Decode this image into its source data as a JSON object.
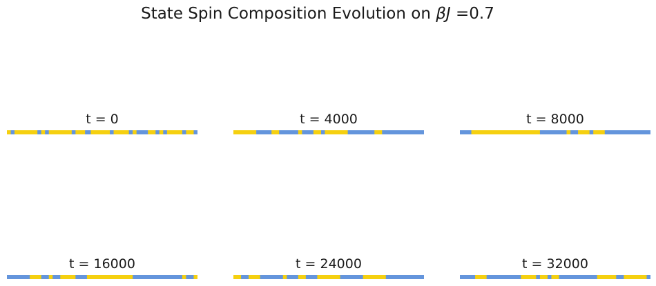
{
  "title_prefix": "State Spin Composition Evolution on ",
  "title_beta": "β",
  "title_j": "J",
  "title_suffix": " =0.7",
  "colors": {
    "up": "#f5d010",
    "down": "#6495dc"
  },
  "chart_data": {
    "type": "heatmap",
    "title": "State Spin Composition Evolution on βJ =0.7",
    "beta_j": 0.7,
    "n_sites": 100,
    "grid": false,
    "series_legend": "none",
    "panels": [
      {
        "label": "t = 0",
        "t": 0,
        "runs": [
          [
            0,
            2,
            "up"
          ],
          [
            2,
            4,
            "down"
          ],
          [
            4,
            16,
            "up"
          ],
          [
            16,
            18,
            "down"
          ],
          [
            18,
            20,
            "up"
          ],
          [
            20,
            22,
            "down"
          ],
          [
            22,
            34,
            "up"
          ],
          [
            34,
            36,
            "down"
          ],
          [
            36,
            41,
            "up"
          ],
          [
            41,
            44,
            "down"
          ],
          [
            44,
            54,
            "up"
          ],
          [
            54,
            56,
            "down"
          ],
          [
            56,
            64,
            "up"
          ],
          [
            64,
            66,
            "down"
          ],
          [
            66,
            68,
            "up"
          ],
          [
            68,
            74,
            "down"
          ],
          [
            74,
            78,
            "up"
          ],
          [
            78,
            80,
            "down"
          ],
          [
            80,
            82,
            "up"
          ],
          [
            82,
            84,
            "down"
          ],
          [
            84,
            92,
            "up"
          ],
          [
            92,
            94,
            "down"
          ],
          [
            94,
            98,
            "up"
          ],
          [
            98,
            100,
            "down"
          ]
        ]
      },
      {
        "label": "t = 4000",
        "t": 4000,
        "runs": [
          [
            0,
            12,
            "up"
          ],
          [
            12,
            20,
            "down"
          ],
          [
            20,
            24,
            "up"
          ],
          [
            24,
            34,
            "down"
          ],
          [
            34,
            36,
            "up"
          ],
          [
            36,
            42,
            "down"
          ],
          [
            42,
            46,
            "up"
          ],
          [
            46,
            48,
            "down"
          ],
          [
            48,
            60,
            "up"
          ],
          [
            60,
            74,
            "down"
          ],
          [
            74,
            78,
            "up"
          ],
          [
            78,
            100,
            "down"
          ]
        ]
      },
      {
        "label": "t = 8000",
        "t": 8000,
        "runs": [
          [
            0,
            6,
            "down"
          ],
          [
            6,
            42,
            "up"
          ],
          [
            42,
            56,
            "down"
          ],
          [
            56,
            58,
            "up"
          ],
          [
            58,
            62,
            "down"
          ],
          [
            62,
            68,
            "up"
          ],
          [
            68,
            70,
            "down"
          ],
          [
            70,
            76,
            "up"
          ],
          [
            76,
            100,
            "down"
          ]
        ]
      },
      {
        "label": "t = 16000",
        "t": 16000,
        "runs": [
          [
            0,
            12,
            "down"
          ],
          [
            12,
            18,
            "up"
          ],
          [
            18,
            22,
            "down"
          ],
          [
            22,
            24,
            "up"
          ],
          [
            24,
            28,
            "down"
          ],
          [
            28,
            36,
            "up"
          ],
          [
            36,
            42,
            "down"
          ],
          [
            42,
            66,
            "up"
          ],
          [
            66,
            92,
            "down"
          ],
          [
            92,
            94,
            "up"
          ],
          [
            94,
            98,
            "down"
          ],
          [
            98,
            100,
            "up"
          ]
        ]
      },
      {
        "label": "t = 24000",
        "t": 24000,
        "runs": [
          [
            0,
            4,
            "up"
          ],
          [
            4,
            8,
            "down"
          ],
          [
            8,
            14,
            "up"
          ],
          [
            14,
            26,
            "down"
          ],
          [
            26,
            28,
            "up"
          ],
          [
            28,
            34,
            "down"
          ],
          [
            34,
            38,
            "up"
          ],
          [
            38,
            44,
            "down"
          ],
          [
            44,
            56,
            "up"
          ],
          [
            56,
            68,
            "down"
          ],
          [
            68,
            80,
            "up"
          ],
          [
            80,
            100,
            "down"
          ]
        ]
      },
      {
        "label": "t = 32000",
        "t": 32000,
        "runs": [
          [
            0,
            8,
            "down"
          ],
          [
            8,
            14,
            "up"
          ],
          [
            14,
            32,
            "down"
          ],
          [
            32,
            40,
            "up"
          ],
          [
            40,
            42,
            "down"
          ],
          [
            42,
            46,
            "up"
          ],
          [
            46,
            48,
            "down"
          ],
          [
            48,
            52,
            "up"
          ],
          [
            52,
            72,
            "down"
          ],
          [
            72,
            82,
            "up"
          ],
          [
            82,
            86,
            "down"
          ],
          [
            86,
            98,
            "up"
          ],
          [
            98,
            100,
            "down"
          ]
        ]
      }
    ]
  }
}
